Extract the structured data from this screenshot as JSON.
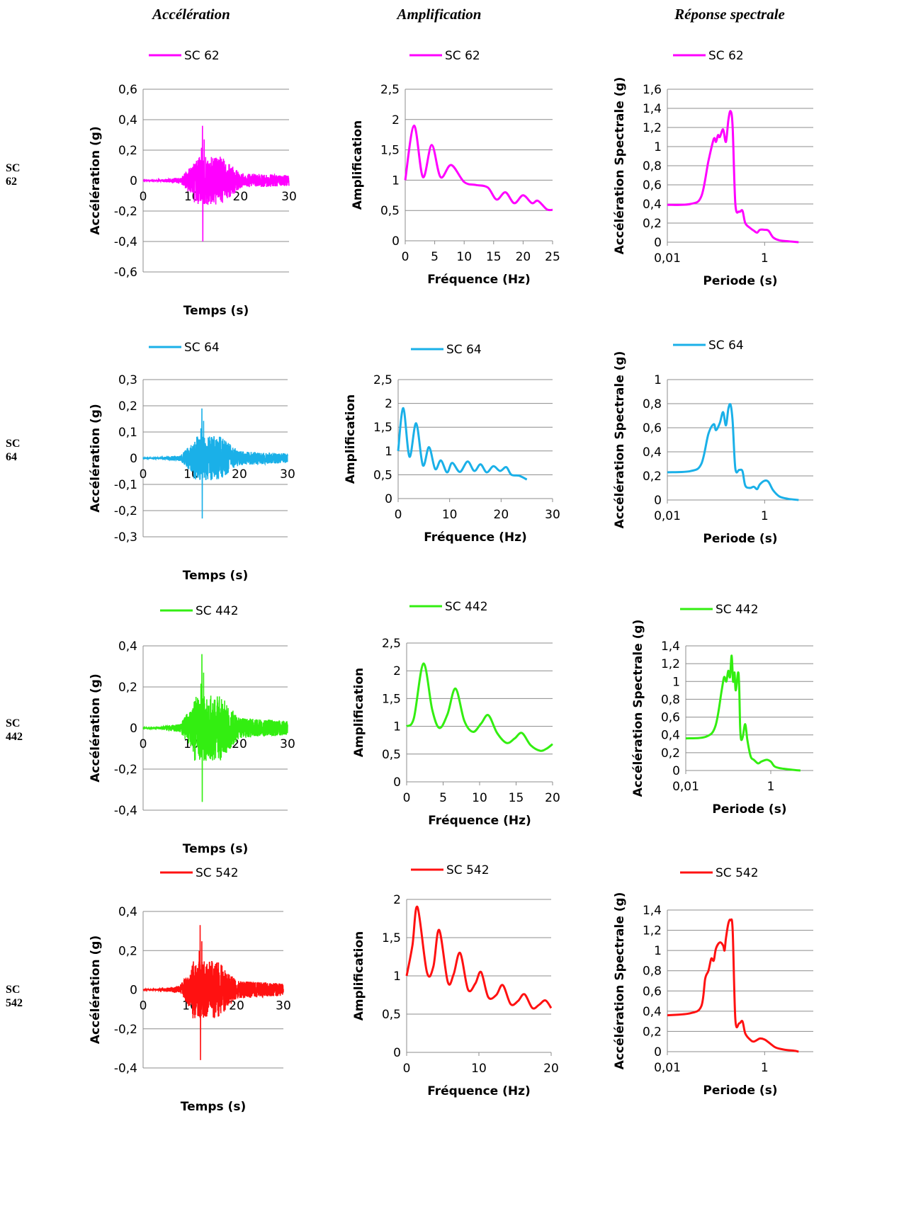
{
  "column_headers": [
    "Accélération",
    "Amplification",
    "Réponse spectrale"
  ],
  "row_labels": [
    [
      "SC",
      "62"
    ],
    [
      "SC",
      "64"
    ],
    [
      "SC",
      "442"
    ],
    [
      "SC",
      "542"
    ]
  ],
  "chart_data": [
    {
      "id": "acc_sc62",
      "type": "line",
      "series": [
        {
          "name": "SC 62",
          "color": "#ff00ff"
        }
      ],
      "xlabel": "Temps (s)",
      "ylabel": "Accélération (g)",
      "xlim": [
        0,
        30
      ],
      "ylim": [
        -0.6,
        0.6
      ],
      "xticks": [
        "0",
        "10",
        "20",
        "30"
      ],
      "yticks": [
        "-0,6",
        "-0,4",
        "-0,2",
        "0",
        "0,2",
        "0,4",
        "0,6"
      ],
      "peaks": {
        "max": 0.36,
        "min": -0.4,
        "at": 12.2
      },
      "grid": "horizontal",
      "legend": "top"
    },
    {
      "id": "amp_sc62",
      "type": "line",
      "series": [
        {
          "name": "SC 62",
          "color": "#ff00ff",
          "x": [
            0,
            1.5,
            3,
            4.5,
            6,
            7.8,
            10,
            12,
            14,
            15.5,
            17,
            18.5,
            20,
            21.5,
            22.5,
            24,
            25
          ],
          "y": [
            1.0,
            1.9,
            1.05,
            1.58,
            1.05,
            1.25,
            0.97,
            0.92,
            0.88,
            0.68,
            0.8,
            0.62,
            0.75,
            0.62,
            0.66,
            0.52,
            0.51
          ]
        }
      ],
      "xlabel": "Fréquence (Hz)",
      "ylabel": "Amplification",
      "xlim": [
        0,
        25
      ],
      "ylim": [
        0,
        2.5
      ],
      "xticks": [
        "0",
        "5",
        "10",
        "15",
        "20",
        "25"
      ],
      "yticks": [
        "0",
        "0,5",
        "1",
        "1,5",
        "2",
        "2,5"
      ],
      "grid": "horizontal",
      "legend": "top"
    },
    {
      "id": "sp_sc62",
      "type": "line",
      "series": [
        {
          "name": "SC 62",
          "color": "#ff00ff",
          "x": [
            0.01,
            0.03,
            0.05,
            0.07,
            0.09,
            0.1,
            0.11,
            0.12,
            0.14,
            0.16,
            0.18,
            0.2,
            0.22,
            0.25,
            0.3,
            0.35,
            0.4,
            0.5,
            0.6,
            0.7,
            0.8,
            1.0,
            1.2,
            1.5,
            2.0,
            3.0,
            5.0
          ],
          "y": [
            0.39,
            0.4,
            0.48,
            0.85,
            1.08,
            1.05,
            1.12,
            1.1,
            1.18,
            1.05,
            1.28,
            1.37,
            1.2,
            0.4,
            0.32,
            0.33,
            0.2,
            0.15,
            0.12,
            0.1,
            0.13,
            0.13,
            0.12,
            0.05,
            0.02,
            0.01,
            0.0
          ]
        }
      ],
      "xlabel": "Periode (s)",
      "ylabel": "Accélération Spectrale (g)",
      "xscale": "log",
      "xlim": [
        0.01,
        10
      ],
      "ylim": [
        0,
        1.6
      ],
      "xticks": [
        "0,01",
        "1"
      ],
      "yticks": [
        "0",
        "0,2",
        "0,4",
        "0,6",
        "0,8",
        "1",
        "1,2",
        "1,4",
        "1,6"
      ],
      "grid": "horizontal",
      "legend": "top"
    },
    {
      "id": "acc_sc64",
      "type": "line",
      "series": [
        {
          "name": "SC 64",
          "color": "#1ab0e8"
        }
      ],
      "xlabel": "Temps (s)",
      "ylabel": "Accélération (g)",
      "xlim": [
        0,
        30
      ],
      "ylim": [
        -0.3,
        0.3
      ],
      "xticks": [
        "0",
        "10",
        "20",
        "30"
      ],
      "yticks": [
        "-0,3",
        "-0,2",
        "-0,1",
        "0",
        "0,1",
        "0,2",
        "0,3"
      ],
      "peaks": {
        "max": 0.19,
        "min": -0.23,
        "at": 12.2
      },
      "grid": "horizontal",
      "legend": "top"
    },
    {
      "id": "amp_sc64",
      "type": "line",
      "series": [
        {
          "name": "SC 64",
          "color": "#1ab0e8",
          "x": [
            0,
            1,
            2.2,
            3.5,
            4.8,
            6,
            7.2,
            8.3,
            9.5,
            10.5,
            12,
            13.5,
            14.8,
            16,
            17.2,
            18.5,
            19.8,
            21,
            22,
            23.5,
            25
          ],
          "y": [
            1.0,
            1.9,
            0.88,
            1.58,
            0.7,
            1.08,
            0.62,
            0.8,
            0.55,
            0.75,
            0.56,
            0.78,
            0.58,
            0.72,
            0.55,
            0.68,
            0.58,
            0.66,
            0.5,
            0.48,
            0.4
          ]
        }
      ],
      "xlabel": "Fréquence (Hz)",
      "ylabel": "Amplification",
      "xlim": [
        0,
        30
      ],
      "ylim": [
        0,
        2.5
      ],
      "xticks": [
        "0",
        "10",
        "20",
        "30"
      ],
      "yticks": [
        "0",
        "0,5",
        "1",
        "1,5",
        "2",
        "2,5"
      ],
      "grid": "horizontal",
      "legend": "top"
    },
    {
      "id": "sp_sc64",
      "type": "line",
      "series": [
        {
          "name": "SC 64",
          "color": "#1ab0e8",
          "x": [
            0.01,
            0.03,
            0.05,
            0.07,
            0.09,
            0.1,
            0.12,
            0.14,
            0.16,
            0.18,
            0.2,
            0.22,
            0.25,
            0.3,
            0.35,
            0.4,
            0.5,
            0.6,
            0.7,
            0.8,
            1.0,
            1.2,
            1.5,
            2.0,
            3.0,
            5.0
          ],
          "y": [
            0.23,
            0.24,
            0.3,
            0.55,
            0.63,
            0.58,
            0.64,
            0.73,
            0.62,
            0.76,
            0.79,
            0.65,
            0.26,
            0.25,
            0.24,
            0.12,
            0.1,
            0.11,
            0.09,
            0.13,
            0.16,
            0.15,
            0.08,
            0.03,
            0.01,
            0.0
          ]
        }
      ],
      "xlabel": "Periode (s)",
      "ylabel": "Accélération Spectrale (g)",
      "xscale": "log",
      "xlim": [
        0.01,
        10
      ],
      "ylim": [
        0,
        1
      ],
      "xticks": [
        "0,01",
        "1"
      ],
      "yticks": [
        "0",
        "0,2",
        "0,4",
        "0,6",
        "0,8",
        "1"
      ],
      "grid": "horizontal",
      "legend": "top"
    },
    {
      "id": "acc_sc442",
      "type": "line",
      "series": [
        {
          "name": "SC 442",
          "color": "#33ee11"
        }
      ],
      "xlabel": "Temps (s)",
      "ylabel": "Accélération (g)",
      "xlim": [
        0,
        30
      ],
      "ylim": [
        -0.4,
        0.4
      ],
      "xticks": [
        "0",
        "10",
        "20",
        "30"
      ],
      "yticks": [
        "-0,4",
        "-0,2",
        "0",
        "0,2",
        "0,4"
      ],
      "peaks": {
        "max": 0.36,
        "min": -0.36,
        "at": 12.2
      },
      "grid": "horizontal",
      "legend": "top"
    },
    {
      "id": "amp_sc442",
      "type": "line",
      "series": [
        {
          "name": "SC 442",
          "color": "#33ee11",
          "x": [
            0,
            1,
            2.3,
            3.5,
            4.5,
            5.6,
            6.7,
            7.9,
            9.1,
            10.2,
            11.2,
            12.4,
            13.7,
            14.8,
            15.8,
            17,
            18.3,
            19.2,
            20
          ],
          "y": [
            1.0,
            1.15,
            2.13,
            1.3,
            0.97,
            1.22,
            1.68,
            1.1,
            0.9,
            1.05,
            1.2,
            0.88,
            0.7,
            0.78,
            0.88,
            0.66,
            0.56,
            0.6,
            0.68
          ]
        }
      ],
      "xlabel": "Fréquence (Hz)",
      "ylabel": "Amplification",
      "xlim": [
        0,
        20
      ],
      "ylim": [
        0,
        2.5
      ],
      "xticks": [
        "0",
        "5",
        "10",
        "15",
        "20"
      ],
      "yticks": [
        "0",
        "0,5",
        "1",
        "1,5",
        "2",
        "2,5"
      ],
      "grid": "horizontal",
      "legend": "top"
    },
    {
      "id": "sp_sc442",
      "type": "line",
      "series": [
        {
          "name": "SC 442",
          "color": "#33ee11",
          "x": [
            0.01,
            0.03,
            0.05,
            0.07,
            0.08,
            0.09,
            0.1,
            0.11,
            0.12,
            0.13,
            0.14,
            0.15,
            0.17,
            0.18,
            0.19,
            0.2,
            0.22,
            0.25,
            0.28,
            0.32,
            0.35,
            0.4,
            0.5,
            0.6,
            0.8,
            1.0,
            1.2,
            1.5,
            2.0,
            3.0,
            5.0
          ],
          "y": [
            0.36,
            0.38,
            0.5,
            0.9,
            1.05,
            1.0,
            1.12,
            1.05,
            1.29,
            1.0,
            1.1,
            0.9,
            1.1,
            0.97,
            0.5,
            0.35,
            0.38,
            0.52,
            0.35,
            0.2,
            0.14,
            0.12,
            0.08,
            0.1,
            0.12,
            0.1,
            0.05,
            0.03,
            0.02,
            0.01,
            0.0
          ]
        }
      ],
      "xlabel": "Periode (s)",
      "ylabel": "Accélération  Spectrale (g)",
      "xscale": "log",
      "xlim": [
        0.01,
        10
      ],
      "ylim": [
        0,
        1.4
      ],
      "xticks": [
        "0,01",
        "1"
      ],
      "yticks": [
        "0",
        "0,2",
        "0,4",
        "0,6",
        "0,8",
        "1",
        "1,2",
        "1,4"
      ],
      "grid": "horizontal",
      "legend": "top"
    },
    {
      "id": "acc_sc542",
      "type": "line",
      "series": [
        {
          "name": "SC 542",
          "color": "#ff1111"
        }
      ],
      "xlabel": "Temps (s)",
      "ylabel": "Accélération (g)",
      "xlim": [
        0,
        30
      ],
      "ylim": [
        -0.4,
        0.4
      ],
      "xticks": [
        "0",
        "10",
        "20",
        "30"
      ],
      "yticks": [
        "-0,4",
        "-0,2",
        "0",
        "0,2",
        "0,4"
      ],
      "peaks": {
        "max": 0.33,
        "min": -0.36,
        "at": 12.2
      },
      "grid": "horizontal",
      "legend": "top"
    },
    {
      "id": "amp_sc542",
      "type": "line",
      "series": [
        {
          "name": "SC 542",
          "color": "#ff1111",
          "x": [
            0,
            0.8,
            1.5,
            2.8,
            3.7,
            4.5,
            5.7,
            6.5,
            7.4,
            8.5,
            9.5,
            10.3,
            11.3,
            12.4,
            13.3,
            14.4,
            15.4,
            16.3,
            17.4,
            18.3,
            19.2,
            20
          ],
          "y": [
            1.0,
            1.4,
            1.9,
            1.05,
            1.12,
            1.6,
            0.92,
            1.02,
            1.3,
            0.82,
            0.9,
            1.05,
            0.72,
            0.75,
            0.88,
            0.63,
            0.67,
            0.76,
            0.58,
            0.62,
            0.68,
            0.58
          ]
        }
      ],
      "xlabel": "Fréquence (Hz)",
      "ylabel": "Amplification",
      "xlim": [
        0,
        20
      ],
      "ylim": [
        0,
        2
      ],
      "xticks": [
        "0",
        "10",
        "20"
      ],
      "yticks": [
        "0",
        "0,5",
        "1",
        "1,5",
        "2"
      ],
      "grid": "horizontal",
      "legend": "top"
    },
    {
      "id": "sp_sc542",
      "type": "line",
      "series": [
        {
          "name": "SC 542",
          "color": "#ff1111",
          "x": [
            0.01,
            0.03,
            0.05,
            0.06,
            0.07,
            0.08,
            0.09,
            0.1,
            0.12,
            0.14,
            0.15,
            0.16,
            0.18,
            0.2,
            0.22,
            0.25,
            0.3,
            0.35,
            0.4,
            0.5,
            0.6,
            0.8,
            1.0,
            1.3,
            1.7,
            2.5,
            4.0,
            5.0
          ],
          "y": [
            0.36,
            0.38,
            0.45,
            0.72,
            0.8,
            0.92,
            0.9,
            1.02,
            1.08,
            1.05,
            1.0,
            1.12,
            1.27,
            1.3,
            1.2,
            0.32,
            0.28,
            0.3,
            0.18,
            0.12,
            0.1,
            0.13,
            0.12,
            0.08,
            0.04,
            0.02,
            0.01,
            0.0
          ]
        }
      ],
      "xlabel": "Periode (s)",
      "ylabel": "Accélération Spectrale (g)",
      "xscale": "log",
      "xlim": [
        0.01,
        10
      ],
      "ylim": [
        0,
        1.4
      ],
      "xticks": [
        "0,01",
        "1"
      ],
      "yticks": [
        "0",
        "0,2",
        "0,4",
        "0,6",
        "0,8",
        "1",
        "1,2",
        "1,4"
      ],
      "grid": "horizontal",
      "legend": "top"
    }
  ]
}
